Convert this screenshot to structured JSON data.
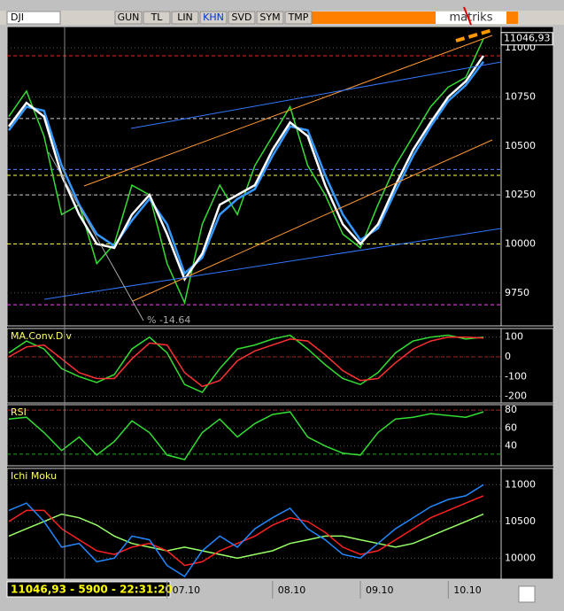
{
  "toolbar": {
    "symbol": "DJI",
    "buttons": [
      "GUN",
      "TL",
      "LIN",
      "KHN",
      "SVD",
      "SYM",
      "TMP"
    ],
    "brand": "matriks"
  },
  "status": "11046,93 - 5900 - 22:31:20",
  "chart_data": [
    {
      "type": "line",
      "categories": [
        null,
        null,
        null,
        null,
        null,
        null,
        null,
        null,
        null,
        "07.10",
        null,
        null,
        null,
        null,
        null,
        "08.10",
        null,
        null,
        null,
        null,
        "09.10",
        null,
        null,
        null,
        null,
        "10.10",
        null,
        null
      ],
      "ylim": [
        9600,
        11100
      ],
      "yticks": [
        9750,
        10000,
        10250,
        10500,
        10750,
        11000
      ],
      "annotation": "% -14.64",
      "reference_lines": [
        {
          "value": 10960,
          "color": "#ff2020"
        },
        {
          "value": 10640,
          "color": "#cccccc"
        },
        {
          "value": 10380,
          "color": "#6080ff"
        },
        {
          "value": 10350,
          "color": "#ffff40"
        },
        {
          "value": 10250,
          "color": "#cccccc"
        },
        {
          "value": 10000,
          "color": "#ffff40"
        },
        {
          "value": 9690,
          "color": "#ff40ff"
        }
      ],
      "series": [
        {
          "color": "#33dd33",
          "values": [
            10650,
            10780,
            10550,
            10150,
            10200,
            9900,
            10000,
            10300,
            10250,
            9900,
            9700,
            10100,
            10300,
            10150,
            10400,
            10550,
            10700,
            10400,
            10250,
            10050,
            9980,
            10200,
            10400,
            10550,
            10700,
            10800,
            10850,
            11046.93
          ],
          "value_labels": [
            null,
            null,
            null,
            null,
            null,
            null,
            null,
            null,
            null,
            null,
            null,
            null,
            null,
            null,
            null,
            null,
            null,
            null,
            null,
            null,
            null,
            null,
            null,
            null,
            null,
            null,
            null,
            "11046,93"
          ]
        },
        {
          "color": "#3399ff",
          "values": [
            10580,
            10700,
            10680,
            10400,
            10200,
            10050,
            9990,
            10120,
            10230,
            10100,
            9850,
            9930,
            10150,
            10230,
            10280,
            10450,
            10600,
            10580,
            10350,
            10150,
            10020,
            10080,
            10270,
            10450,
            10600,
            10730,
            10810,
            10930
          ]
        },
        {
          "color": "#ffffff",
          "values": [
            10600,
            10720,
            10650,
            10350,
            10150,
            10000,
            9980,
            10150,
            10250,
            10050,
            9820,
            9950,
            10200,
            10250,
            10300,
            10480,
            10620,
            10550,
            10300,
            10100,
            10000,
            10100,
            10300,
            10480,
            10620,
            10750,
            10830,
            10960
          ]
        }
      ]
    },
    {
      "type": "line",
      "title": "MA.Conv.Div",
      "ylim": [
        -220,
        130
      ],
      "yticks": [
        100,
        0,
        -100,
        -200
      ],
      "reference_lines": [
        {
          "value": 0,
          "color": "#aa2020"
        }
      ],
      "series": [
        {
          "color": "#33dd33",
          "values": [
            20,
            80,
            40,
            -60,
            -100,
            -130,
            -90,
            40,
            100,
            20,
            -140,
            -180,
            -60,
            40,
            60,
            90,
            110,
            40,
            -40,
            -110,
            -140,
            -80,
            20,
            80,
            100,
            110,
            90,
            100
          ]
        },
        {
          "color": "#ff3030",
          "values": [
            0,
            50,
            60,
            -10,
            -80,
            -110,
            -110,
            -10,
            70,
            60,
            -80,
            -150,
            -120,
            -20,
            30,
            60,
            90,
            80,
            10,
            -70,
            -120,
            -110,
            -30,
            40,
            80,
            100,
            100,
            95
          ]
        }
      ]
    },
    {
      "type": "line",
      "title": "RSI",
      "ylim": [
        22,
        84
      ],
      "yticks": [
        40,
        60,
        80
      ],
      "reference_lines": [
        {
          "value": 80,
          "color": "#aa2020"
        },
        {
          "value": 31,
          "color": "#20aa20"
        }
      ],
      "series": [
        {
          "color": "#33dd33",
          "values": [
            70,
            72,
            55,
            35,
            50,
            30,
            45,
            68,
            55,
            30,
            25,
            55,
            70,
            50,
            65,
            75,
            78,
            50,
            40,
            32,
            30,
            55,
            70,
            72,
            76,
            74,
            72,
            78
          ]
        }
      ]
    },
    {
      "type": "line",
      "title": "Ichi Moku",
      "ylim": [
        9750,
        11150
      ],
      "yticks": [
        10000,
        10500,
        11000
      ],
      "reference_lines": [],
      "series": [
        {
          "color": "#99ff66",
          "values": [
            10300,
            10400,
            10500,
            10600,
            10550,
            10450,
            10300,
            10200,
            10150,
            10100,
            10150,
            10100,
            10050,
            10000,
            10050,
            10100,
            10200,
            10250,
            10300,
            10300,
            10250,
            10200,
            10150,
            10200,
            10300,
            10400,
            10500,
            10600
          ]
        },
        {
          "color": "#ff2020",
          "values": [
            10500,
            10650,
            10650,
            10400,
            10250,
            10100,
            10050,
            10150,
            10200,
            10100,
            9900,
            9950,
            10100,
            10200,
            10300,
            10450,
            10550,
            10500,
            10350,
            10150,
            10050,
            10100,
            10250,
            10400,
            10550,
            10650,
            10750,
            10850
          ]
        },
        {
          "color": "#2288ff",
          "values": [
            10650,
            10750,
            10500,
            10150,
            10200,
            9950,
            10000,
            10300,
            10250,
            9900,
            9750,
            10100,
            10300,
            10150,
            10400,
            10550,
            10680,
            10400,
            10250,
            10050,
            10000,
            10200,
            10400,
            10550,
            10700,
            10800,
            10850,
            11000
          ]
        }
      ]
    }
  ]
}
